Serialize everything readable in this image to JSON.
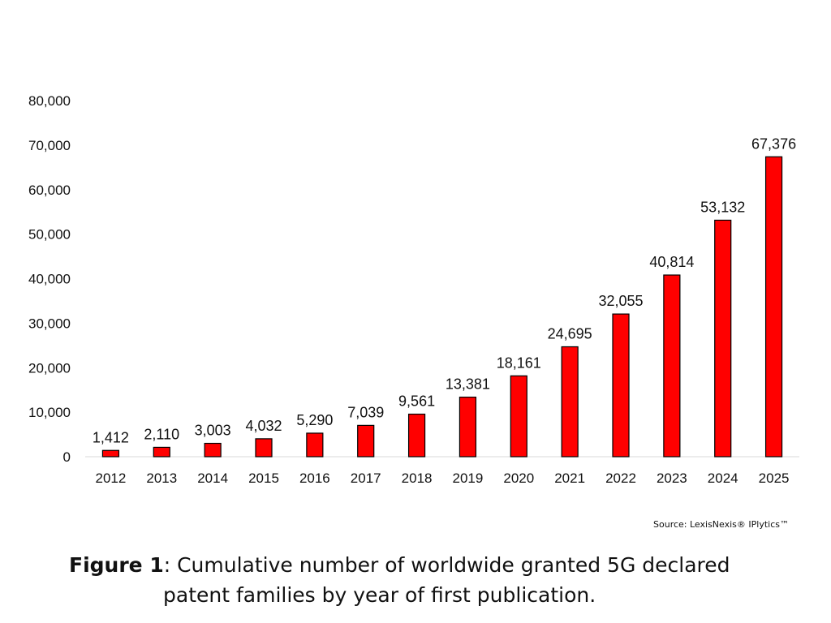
{
  "chart_data": {
    "type": "bar",
    "title": "",
    "xlabel": "",
    "ylabel": "",
    "categories": [
      "2012",
      "2013",
      "2014",
      "2015",
      "2016",
      "2017",
      "2018",
      "2019",
      "2020",
      "2021",
      "2022",
      "2023",
      "2024",
      "2025"
    ],
    "values": [
      1412,
      2110,
      3003,
      4032,
      5290,
      7039,
      9561,
      13381,
      18161,
      24695,
      32055,
      40814,
      53132,
      67376
    ],
    "value_labels": [
      "1,412",
      "2,110",
      "3,003",
      "4,032",
      "5,290",
      "7,039",
      "9,561",
      "13,381",
      "18,161",
      "24,695",
      "32,055",
      "40,814",
      "53,132",
      "67,376"
    ],
    "ylim": [
      0,
      80000
    ],
    "yticks": [
      0,
      10000,
      20000,
      30000,
      40000,
      50000,
      60000,
      70000,
      80000
    ],
    "ytick_labels": [
      "0",
      "10,000",
      "20,000",
      "30,000",
      "40,000",
      "50,000",
      "60,000",
      "70,000",
      "80,000"
    ],
    "grid": false,
    "legend": "none",
    "bar_color": "#ff0000",
    "bar_edge_color": "#000000"
  },
  "source": "Source: LexisNexis® IPlytics™",
  "caption": {
    "figure_label": "Figure 1",
    "line1": ": Cumulative number of worldwide granted 5G declared",
    "line2": "patent families by year of first publication."
  }
}
